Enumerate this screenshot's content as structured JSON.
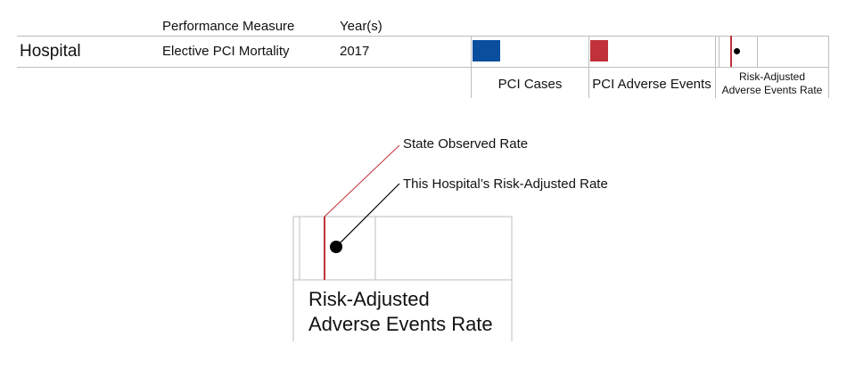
{
  "header": {
    "performance_measure": "Performance Measure",
    "years": "Year(s)"
  },
  "row": {
    "hospital": "Hospital",
    "measure": "Elective PCI Mortality",
    "year": "2017"
  },
  "legend": {
    "pci_cases": {
      "label": "PCI Cases",
      "color": "#0a4f9e"
    },
    "pci_adverse_events": {
      "label": "PCI Adverse Events",
      "color": "#c0313a"
    },
    "risk_adjusted_rate": {
      "label_line1": "Risk-Adjusted",
      "label_line2": "Adverse Events Rate"
    }
  },
  "callouts": {
    "state_observed_rate": {
      "label": "State Observed Rate",
      "color": "#c0313a"
    },
    "hospital_risk_adjusted_rate": {
      "label": "This Hospital’s Risk-Adjusted Rate",
      "color": "#000000"
    }
  },
  "detail_box": {
    "label_line1": "Risk-Adjusted",
    "label_line2": "Adverse Events Rate"
  },
  "colors": {
    "grid": "#bdbdbd",
    "state_line": "#c0313a",
    "hospital_dot": "#000000"
  }
}
